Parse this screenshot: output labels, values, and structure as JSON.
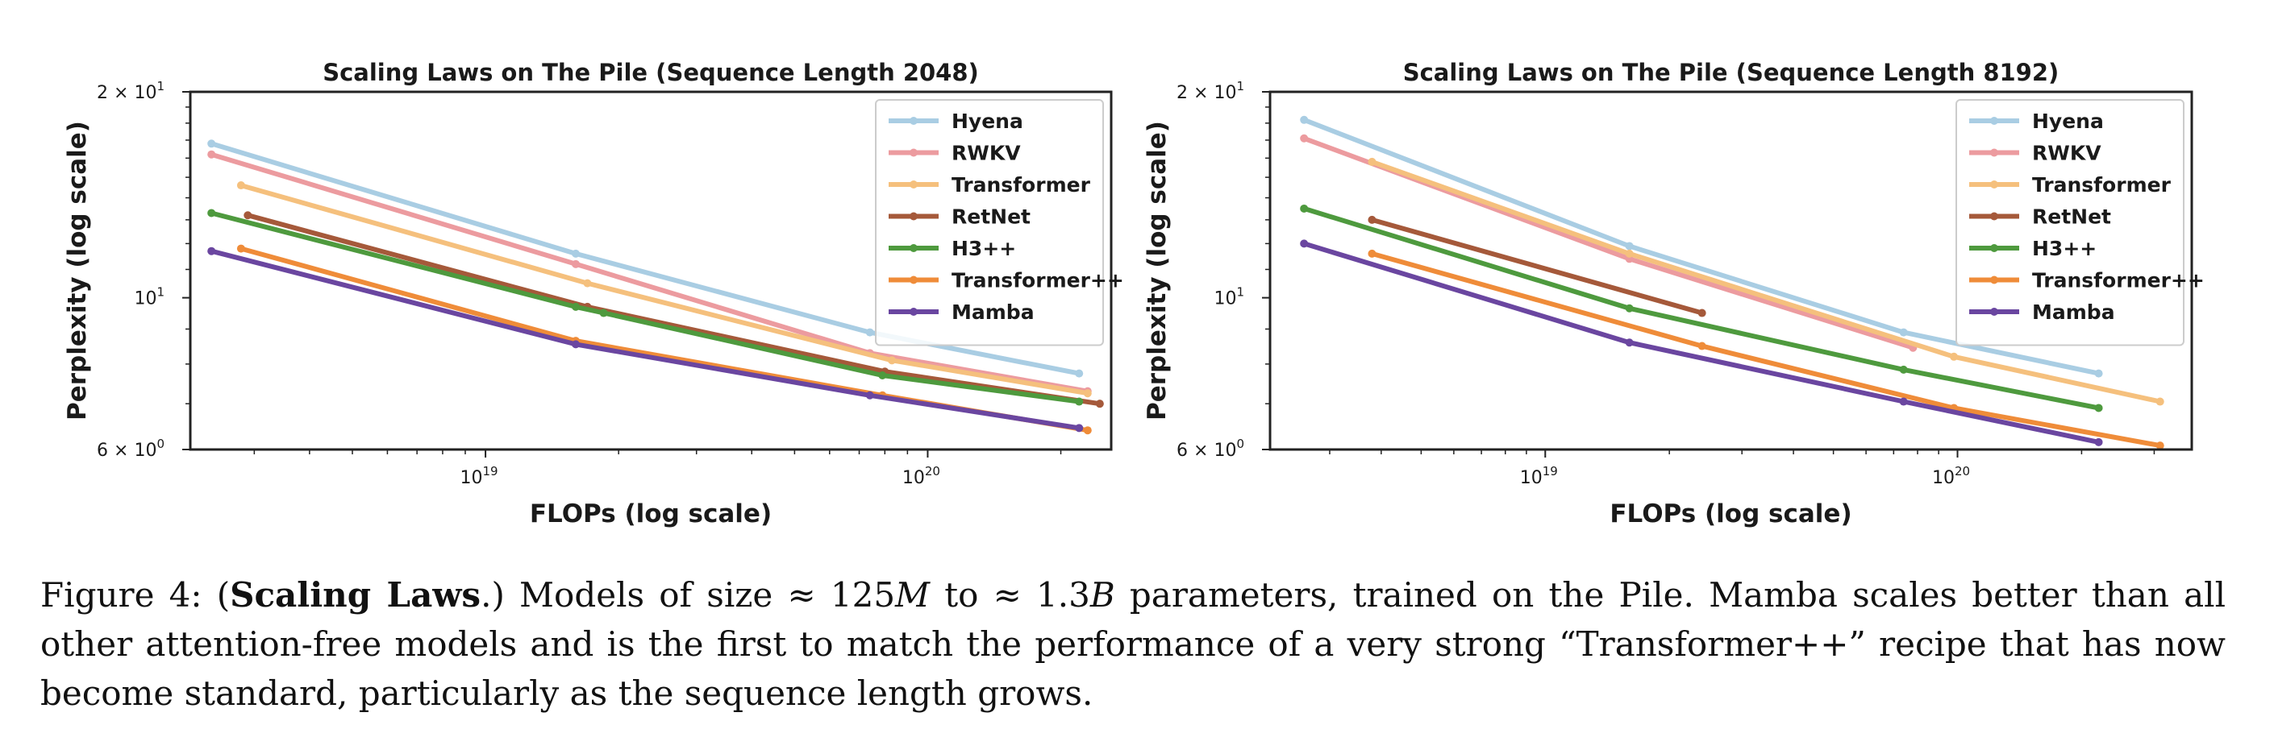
{
  "chart_data": [
    {
      "type": "line",
      "title": "Scaling Laws on The Pile (Sequence Length 2048)",
      "xlabel": "FLOPs (log scale)",
      "ylabel": "Perplexity (log scale)",
      "x_scale": "log",
      "y_scale": "log",
      "xlim": [
        2.15e+18,
        2.6e+20
      ],
      "ylim": [
        6,
        20
      ],
      "x_ticks": [
        {
          "value": 1e+19,
          "base": "10",
          "exp": "19"
        },
        {
          "value": 1e+20,
          "base": "10",
          "exp": "20"
        }
      ],
      "y_ticks": [
        {
          "value": 20,
          "base": "2 × 10",
          "exp": "1"
        },
        {
          "value": 10,
          "base": "10",
          "exp": "1"
        },
        {
          "value": 6,
          "base": "6 × 10",
          "exp": "0"
        }
      ],
      "legend": "top-right",
      "series": [
        {
          "name": "Hyena",
          "color": "#a9cde3",
          "points": [
            [
              2.4e+18,
              16.8
            ],
            [
              1.6e+19,
              11.6
            ],
            [
              7.4e+19,
              8.9
            ],
            [
              2.2e+20,
              7.75
            ]
          ]
        },
        {
          "name": "RWKV",
          "color": "#ec9b9f",
          "points": [
            [
              2.4e+18,
              16.2
            ],
            [
              1.6e+19,
              11.2
            ],
            [
              7.4e+19,
              8.3
            ],
            [
              2.3e+20,
              7.3
            ]
          ]
        },
        {
          "name": "Transformer",
          "color": "#f5c07d",
          "points": [
            [
              2.8e+18,
              14.6
            ],
            [
              1.7e+19,
              10.5
            ],
            [
              8.3e+19,
              8.1
            ],
            [
              2.3e+20,
              7.25
            ]
          ]
        },
        {
          "name": "RetNet",
          "color": "#a5593a",
          "points": [
            [
              2.9e+18,
              13.2
            ],
            [
              1.7e+19,
              9.7
            ],
            [
              8e+19,
              7.8
            ],
            [
              2.45e+20,
              7.0
            ]
          ]
        },
        {
          "name": "H3++",
          "color": "#4e9a3e",
          "points": [
            [
              2.4e+18,
              13.3
            ],
            [
              1.6e+19,
              9.7
            ],
            [
              1.85e+19,
              9.5
            ],
            [
              7.9e+19,
              7.7
            ],
            [
              2.2e+20,
              7.05
            ]
          ]
        },
        {
          "name": "Transformer++",
          "color": "#ef8c39",
          "points": [
            [
              2.8e+18,
              11.8
            ],
            [
              1.6e+19,
              8.65
            ],
            [
              7.9e+19,
              7.2
            ],
            [
              2.3e+20,
              6.4
            ]
          ]
        },
        {
          "name": "Mamba",
          "color": "#6a46a0",
          "points": [
            [
              2.4e+18,
              11.7
            ],
            [
              1.6e+19,
              8.55
            ],
            [
              7.4e+19,
              7.2
            ],
            [
              2.2e+20,
              6.45
            ]
          ]
        }
      ]
    },
    {
      "type": "line",
      "title": "Scaling Laws on The Pile (Sequence Length 8192)",
      "xlabel": "FLOPs (log scale)",
      "ylabel": "Perplexity (log scale)",
      "x_scale": "log",
      "y_scale": "log",
      "xlim": [
        2.15e+18,
        3.7e+20
      ],
      "ylim": [
        6,
        20
      ],
      "x_ticks": [
        {
          "value": 1e+19,
          "base": "10",
          "exp": "19"
        },
        {
          "value": 1e+20,
          "base": "10",
          "exp": "20"
        }
      ],
      "y_ticks": [
        {
          "value": 20,
          "base": "2 × 10",
          "exp": "1"
        },
        {
          "value": 10,
          "base": "10",
          "exp": "1"
        },
        {
          "value": 6,
          "base": "6 × 10",
          "exp": "0"
        }
      ],
      "legend": "top-right",
      "series": [
        {
          "name": "Hyena",
          "color": "#a9cde3",
          "points": [
            [
              2.6e+18,
              18.2
            ],
            [
              1.6e+19,
              11.9
            ],
            [
              7.4e+19,
              8.9
            ],
            [
              2.2e+20,
              7.75
            ]
          ]
        },
        {
          "name": "RWKV",
          "color": "#ec9b9f",
          "points": [
            [
              2.6e+18,
              17.1
            ],
            [
              1.6e+19,
              11.4
            ],
            [
              7.8e+19,
              8.45
            ]
          ]
        },
        {
          "name": "Transformer",
          "color": "#f5c07d",
          "points": [
            [
              3.8e+18,
              15.8
            ],
            [
              1.6e+19,
              11.6
            ],
            [
              9.8e+19,
              8.2
            ],
            [
              3.1e+20,
              7.05
            ]
          ]
        },
        {
          "name": "RetNet",
          "color": "#a5593a",
          "points": [
            [
              3.8e+18,
              13.0
            ],
            [
              2.4e+19,
              9.5
            ]
          ]
        },
        {
          "name": "H3++",
          "color": "#4e9a3e",
          "points": [
            [
              2.6e+18,
              13.5
            ],
            [
              1.6e+19,
              9.65
            ],
            [
              7.4e+19,
              7.85
            ],
            [
              2.2e+20,
              6.9
            ]
          ]
        },
        {
          "name": "Transformer++",
          "color": "#ef8c39",
          "points": [
            [
              3.8e+18,
              11.6
            ],
            [
              2.4e+19,
              8.5
            ],
            [
              9.8e+19,
              6.9
            ],
            [
              3.1e+20,
              6.08
            ]
          ]
        },
        {
          "name": "Mamba",
          "color": "#6a46a0",
          "points": [
            [
              2.6e+18,
              12.0
            ],
            [
              1.6e+19,
              8.6
            ],
            [
              7.4e+19,
              7.05
            ],
            [
              2.2e+20,
              6.15
            ]
          ]
        }
      ]
    }
  ],
  "caption": {
    "lead": "Figure 4: (",
    "bold": "Scaling Laws",
    "after_bold": ".) Models of size ≈ 125",
    "m_unit": "M",
    "mid": " to ≈ 1.3",
    "b_unit": "B",
    "rest": " parameters, trained on the Pile. Mamba scales better than all other attention-free models and is the first to match the performance of a very strong “Transformer++” recipe that has now become standard, particularly as the sequence length grows."
  }
}
